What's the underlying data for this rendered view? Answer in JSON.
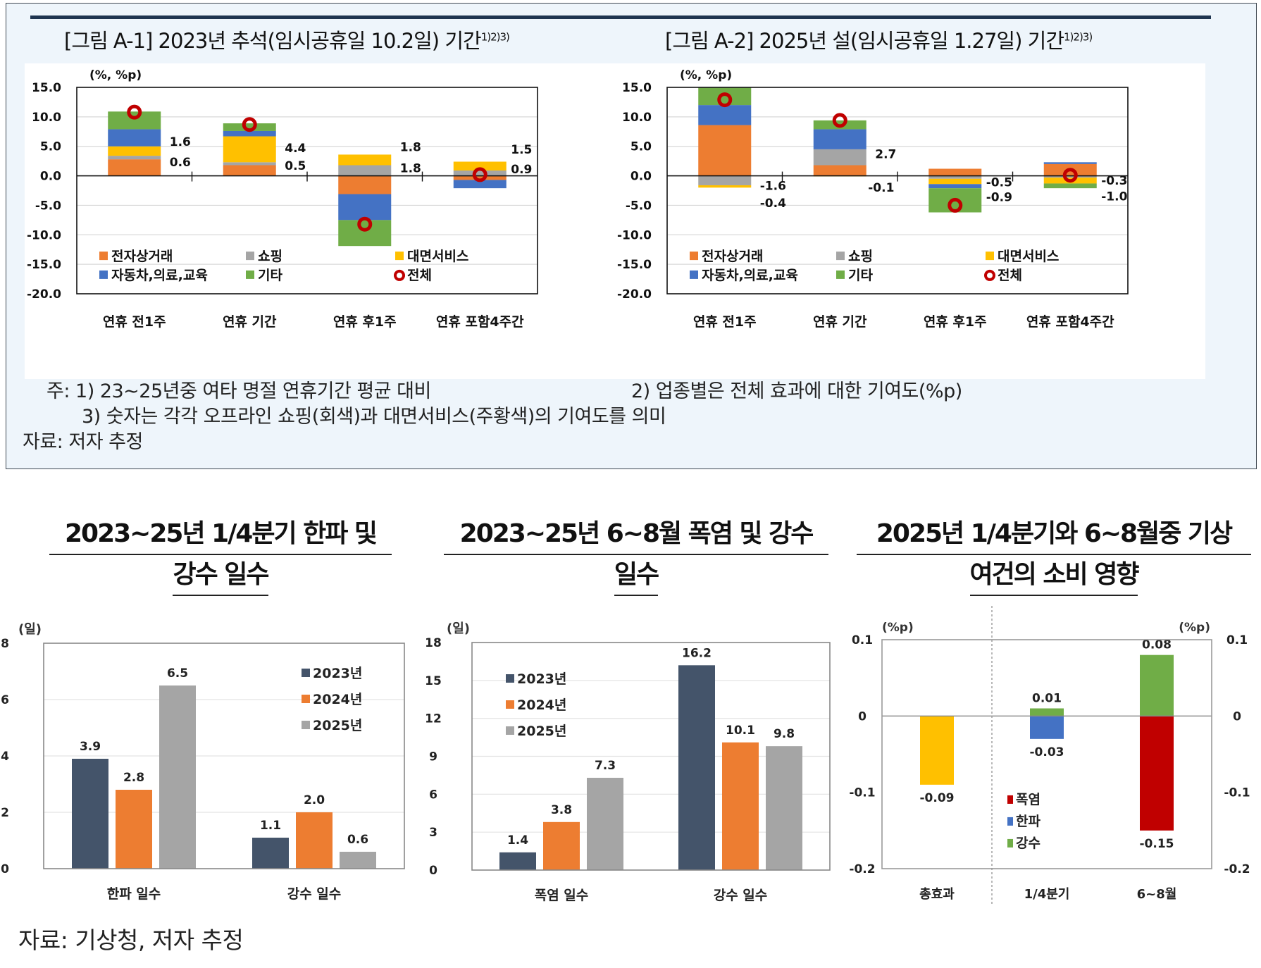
{
  "top_panel": {
    "figure_a1_title": "[그림 A-1] 2023년 추석(임시공휴일 10.2일) 기간",
    "figure_a1_superscript": "1)2)3)",
    "figure_a2_title": "[그림 A-2] 2025년 설(임시공휴일 1.27일) 기간",
    "figure_a2_superscript": "1)2)3)",
    "notes": {
      "note1": "주: 1) 23~25년중 여타 명절 연휴기간 평균 대비",
      "note2": "2) 업종별은 전체 효과에 대한 기여도(%p)",
      "note3": "3) 숫자는 각각 오프라인 쇼핑(회색)과 대면서비스(주황색)의 기여도를 의미",
      "source": "자료: 저자 추정"
    }
  },
  "bottom_panel": {
    "chart_b1_title_line1": "2023~25년 1/4분기 한파 및",
    "chart_b1_title_line2": "강수 일수",
    "chart_b2_title_line1": "2023~25년 6~8월 폭염 및 강수",
    "chart_b2_title_line2": "일수",
    "chart_b3_title_line1": "2025년 1/4분기와 6~8월중 기상",
    "chart_b3_title_line2": "여건의 소비 영향",
    "source": "자료: 기상청, 저자 추정"
  },
  "colors": {
    "ecommerce": "#ED7D31",
    "shopping": "#A5A5A5",
    "face_service": "#FFC000",
    "auto_med_edu": "#4472C4",
    "other": "#70AD47",
    "total_marker": "#C00000",
    "y2023": "#44546A",
    "y2024": "#ED7D31",
    "y2025": "#A5A5A5",
    "heatwave": "#C00000",
    "coldwave": "#4472C4",
    "rain": "#70AD47",
    "total_effect": "#FFC000"
  },
  "chart_data": [
    {
      "type": "bar",
      "stacked": true,
      "title": "[그림 A-1] 2023년 추석(임시공휴일 10.2일) 기간",
      "ylabel": "(%, %p)",
      "ylim": [
        -20,
        15
      ],
      "yticks": [
        "15.0",
        "10.0",
        "5.0",
        "0.0",
        "-5.0",
        "-10.0",
        "-15.0",
        "-20.0"
      ],
      "ytick_values": [
        15,
        10,
        5,
        0,
        -5,
        -10,
        -15,
        -20
      ],
      "categories": [
        "연휴 전1주",
        "연휴 기간",
        "연휴 후1주",
        "연휴 포함4주간"
      ],
      "series": [
        {
          "name": "전자상거래",
          "key": "ecommerce",
          "values": [
            2.8,
            1.8,
            -3.1,
            -0.7
          ]
        },
        {
          "name": "쇼핑",
          "key": "shopping",
          "values": [
            0.6,
            0.5,
            1.8,
            0.9
          ]
        },
        {
          "name": "대면서비스",
          "key": "face_service",
          "values": [
            1.6,
            4.4,
            1.8,
            1.5
          ]
        },
        {
          "name": "자동차,의료,교육",
          "key": "auto_med_edu",
          "values": [
            2.9,
            0.9,
            -4.4,
            -1.4
          ]
        },
        {
          "name": "기타",
          "key": "other",
          "values": [
            3.0,
            1.3,
            -4.4,
            0.0
          ]
        }
      ],
      "total": {
        "name": "전체",
        "values": [
          10.8,
          8.7,
          -8.2,
          0.2
        ]
      },
      "annotations": [
        {
          "category": 0,
          "upper": "1.6",
          "lower": "0.6"
        },
        {
          "category": 1,
          "upper": "4.4",
          "lower": "0.5"
        },
        {
          "category": 2,
          "upper": "1.8",
          "lower": "1.8"
        },
        {
          "category": 3,
          "upper": "1.5",
          "lower": "0.9"
        }
      ],
      "legend": [
        "전자상거래",
        "쇼핑",
        "대면서비스",
        "자동차,의료,교육",
        "기타",
        "전체"
      ],
      "legend_position": "bottom-inside",
      "grid": true
    },
    {
      "type": "bar",
      "stacked": true,
      "title": "[그림 A-2] 2025년 설(임시공휴일 1.27일) 기간",
      "ylabel": "(%, %p)",
      "ylim": [
        -20,
        15
      ],
      "yticks": [
        "15.0",
        "10.0",
        "5.0",
        "0.0",
        "-5.0",
        "-10.0",
        "-15.0",
        "-20.0"
      ],
      "ytick_values": [
        15,
        10,
        5,
        0,
        -5,
        -10,
        -15,
        -20
      ],
      "categories": [
        "연휴 전1주",
        "연휴 기간",
        "연휴 후1주",
        "연휴 포함4주간"
      ],
      "series": [
        {
          "name": "전자상거래",
          "key": "ecommerce",
          "values": [
            8.6,
            1.8,
            1.2,
            2.0
          ]
        },
        {
          "name": "쇼핑",
          "key": "shopping",
          "values": [
            -1.6,
            2.7,
            -0.5,
            -0.3
          ]
        },
        {
          "name": "대면서비스",
          "key": "face_service",
          "values": [
            -0.4,
            -0.1,
            -0.9,
            -1.0
          ]
        },
        {
          "name": "자동차,의료,교육",
          "key": "auto_med_edu",
          "values": [
            3.4,
            3.4,
            -0.7,
            0.3
          ]
        },
        {
          "name": "기타",
          "key": "other",
          "values": [
            3.0,
            1.5,
            -4.1,
            -0.8
          ]
        }
      ],
      "total": {
        "name": "전체",
        "values": [
          12.9,
          9.4,
          -5.0,
          0.1
        ]
      },
      "annotations": [
        {
          "category": 0,
          "upper": "-1.6",
          "lower": "-0.4"
        },
        {
          "category": 1,
          "upper": "2.7",
          "lower": "-0.1"
        },
        {
          "category": 2,
          "upper": "-0.5",
          "lower": "-0.9"
        },
        {
          "category": 3,
          "upper": "-0.3",
          "lower": "-1.0"
        }
      ],
      "legend": [
        "전자상거래",
        "쇼핑",
        "대면서비스",
        "자동차,의료,교육",
        "기타",
        "전체"
      ],
      "legend_position": "bottom-inside",
      "grid": true
    },
    {
      "type": "bar",
      "title": "2023~25년 1/4분기 한파 및 강수 일수",
      "ylabel": "(일)",
      "ylim": [
        0,
        8
      ],
      "yticks": [
        "8",
        "6",
        "4",
        "2",
        "0"
      ],
      "ytick_values": [
        8,
        6,
        4,
        2,
        0
      ],
      "categories": [
        "한파 일수",
        "강수 일수"
      ],
      "series": [
        {
          "name": "2023년",
          "key": "y2023",
          "values": [
            3.9,
            1.1
          ],
          "labels": [
            "3.9",
            "1.1"
          ]
        },
        {
          "name": "2024년",
          "key": "y2024",
          "values": [
            2.8,
            2.0
          ],
          "labels": [
            "2.8",
            "2.0"
          ]
        },
        {
          "name": "2025년",
          "key": "y2025",
          "values": [
            6.5,
            0.6
          ],
          "labels": [
            "6.5",
            "0.6"
          ]
        }
      ],
      "legend_position": "top-right",
      "grid": true
    },
    {
      "type": "bar",
      "title": "2023~25년 6~8월 폭염 및 강수 일수",
      "ylabel": "(일)",
      "ylim": [
        0,
        18
      ],
      "yticks": [
        "18",
        "15",
        "12",
        "9",
        "6",
        "3",
        "0"
      ],
      "ytick_values": [
        18,
        15,
        12,
        9,
        6,
        3,
        0
      ],
      "categories": [
        "폭염 일수",
        "강수 일수"
      ],
      "series": [
        {
          "name": "2023년",
          "key": "y2023",
          "values": [
            1.4,
            16.2
          ],
          "labels": [
            "1.4",
            "16.2"
          ]
        },
        {
          "name": "2024년",
          "key": "y2024",
          "values": [
            3.8,
            10.1
          ],
          "labels": [
            "3.8",
            "10.1"
          ]
        },
        {
          "name": "2025년",
          "key": "y2025",
          "values": [
            7.3,
            9.8
          ],
          "labels": [
            "7.3",
            "9.8"
          ]
        }
      ],
      "legend_position": "top-left",
      "grid": true
    },
    {
      "type": "bar",
      "stacked": true,
      "title": "2025년 1/4분기와 6~8월중 기상 여건의 소비 영향",
      "ylabel": "(%p)",
      "ylabel_right": "(%p)",
      "ylim": [
        -0.2,
        0.1
      ],
      "yticks": [
        "0.1",
        "0",
        "-0.1",
        "-0.2"
      ],
      "ytick_values": [
        0.1,
        0,
        -0.1,
        -0.2
      ],
      "categories": [
        "총효과",
        "1/4분기",
        "6~8월"
      ],
      "series": [
        {
          "name": "총효과",
          "key": "total_effect",
          "values": [
            -0.09,
            0,
            0
          ],
          "labels": [
            "-0.09",
            "",
            ""
          ]
        },
        {
          "name": "폭염",
          "key": "heatwave",
          "values": [
            0,
            0,
            -0.15
          ],
          "labels": [
            "",
            "",
            "-0.15"
          ]
        },
        {
          "name": "한파",
          "key": "coldwave",
          "values": [
            0,
            -0.03,
            0
          ],
          "labels": [
            "",
            "-0.03",
            ""
          ]
        },
        {
          "name": "강수",
          "key": "rain",
          "values": [
            0,
            0.01,
            0.08
          ],
          "labels": [
            "",
            "0.01",
            "0.08"
          ]
        }
      ],
      "legend": [
        "폭염",
        "한파",
        "강수"
      ],
      "legend_position": "bottom-center",
      "grid": false
    }
  ]
}
